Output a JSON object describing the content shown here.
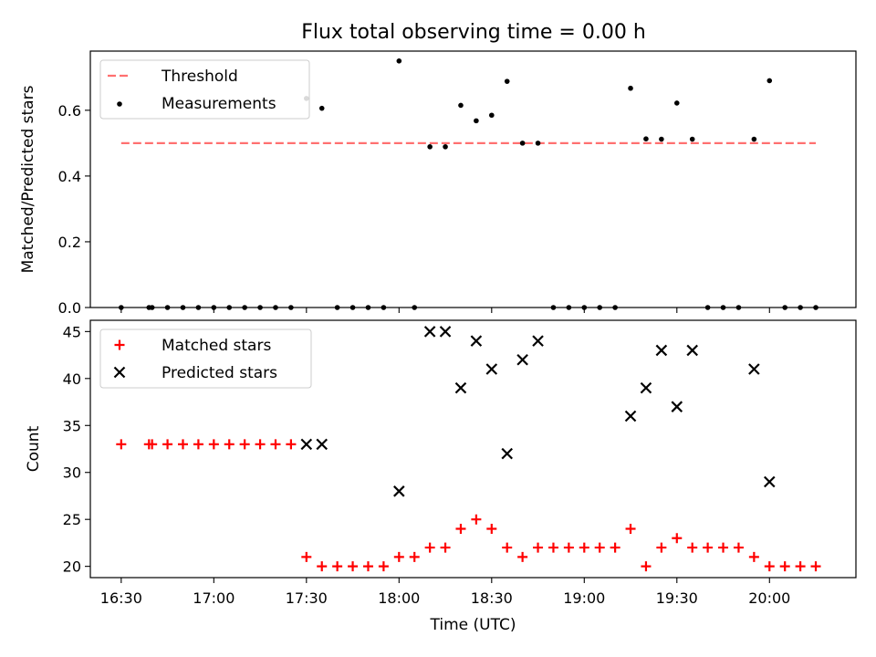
{
  "figure": {
    "title": "Flux total observing time = 0.00 h"
  },
  "chart_data": [
    {
      "type": "scatter",
      "title": "Flux total observing time = 0.00 h",
      "ylabel": "Matched/Predicted stars",
      "xlabel": "",
      "xlim": [
        "16:20",
        "20:28"
      ],
      "ylim": [
        0,
        0.78
      ],
      "y_ticks": [
        0.0,
        0.2,
        0.4,
        0.6
      ],
      "y_tick_labels": [
        "0.0",
        "0.2",
        "0.4",
        "0.6"
      ],
      "x_ticks": [
        "16:30",
        "17:00",
        "17:30",
        "18:00",
        "18:30",
        "19:00",
        "19:30",
        "20:00"
      ],
      "grid": false,
      "legend": "upper-left",
      "series": [
        {
          "name": "Threshold",
          "kind": "dashed-line",
          "color": "#ff7070",
          "x": [
            "16:30",
            "20:15"
          ],
          "y": [
            0.5,
            0.5
          ]
        },
        {
          "name": "Measurements",
          "kind": "points",
          "color": "#000000",
          "x": [
            "16:30",
            "16:39",
            "16:40",
            "16:45",
            "16:50",
            "16:55",
            "17:00",
            "17:05",
            "17:10",
            "17:15",
            "17:20",
            "17:25",
            "17:30",
            "17:35",
            "17:40",
            "17:45",
            "17:50",
            "17:55",
            "18:00",
            "18:05",
            "18:10",
            "18:15",
            "18:20",
            "18:25",
            "18:30",
            "18:35",
            "18:40",
            "18:45",
            "18:50",
            "18:55",
            "19:00",
            "19:05",
            "19:10",
            "19:15",
            "19:20",
            "19:25",
            "19:30",
            "19:35",
            "19:40",
            "19:45",
            "19:50",
            "19:55",
            "20:00",
            "20:05",
            "20:10",
            "20:15"
          ],
          "y": [
            0,
            0,
            0,
            0,
            0,
            0,
            0,
            0,
            0,
            0,
            0,
            0,
            0.636,
            0.606,
            0,
            0,
            0,
            0,
            0.75,
            0,
            0.489,
            0.489,
            0.615,
            0.568,
            0.585,
            0.688,
            0.5,
            0.5,
            0,
            0,
            0,
            0,
            0,
            0.667,
            0.513,
            0.512,
            0.622,
            0.512,
            0,
            0,
            0,
            0.512,
            0.69,
            0,
            0,
            0
          ]
        }
      ]
    },
    {
      "type": "scatter",
      "title": "",
      "ylabel": "Count",
      "xlabel": "Time (UTC)",
      "xlim": [
        "16:20",
        "20:28"
      ],
      "ylim": [
        18.8,
        46.2
      ],
      "y_ticks": [
        20,
        25,
        30,
        35,
        40,
        45
      ],
      "y_tick_labels": [
        "20",
        "25",
        "30",
        "35",
        "40",
        "45"
      ],
      "x_ticks": [
        "16:30",
        "17:00",
        "17:30",
        "18:00",
        "18:30",
        "19:00",
        "19:30",
        "20:00"
      ],
      "x_tick_labels": [
        "16:30",
        "17:00",
        "17:30",
        "18:00",
        "18:30",
        "19:00",
        "19:30",
        "20:00"
      ],
      "grid": false,
      "legend": "upper-left",
      "series": [
        {
          "name": "Matched stars",
          "marker": "plus",
          "color": "#ff0000",
          "x": [
            "16:30",
            "16:39",
            "16:40",
            "16:45",
            "16:50",
            "16:55",
            "17:00",
            "17:05",
            "17:10",
            "17:15",
            "17:20",
            "17:25",
            "17:30",
            "17:35",
            "17:40",
            "17:45",
            "17:50",
            "17:55",
            "18:00",
            "18:05",
            "18:10",
            "18:15",
            "18:20",
            "18:25",
            "18:30",
            "18:35",
            "18:40",
            "18:45",
            "18:50",
            "18:55",
            "19:00",
            "19:05",
            "19:10",
            "19:15",
            "19:20",
            "19:25",
            "19:30",
            "19:35",
            "19:40",
            "19:45",
            "19:50",
            "19:55",
            "20:00",
            "20:05",
            "20:10",
            "20:15"
          ],
          "y": [
            33,
            33,
            33,
            33,
            33,
            33,
            33,
            33,
            33,
            33,
            33,
            33,
            21,
            20,
            20,
            20,
            20,
            20,
            21,
            21,
            22,
            22,
            24,
            25,
            24,
            22,
            21,
            22,
            22,
            22,
            22,
            22,
            22,
            24,
            20,
            22,
            23,
            22,
            22,
            22,
            22,
            21,
            20,
            20,
            20,
            20
          ]
        },
        {
          "name": "Predicted stars",
          "marker": "x",
          "color": "#000000",
          "x": [
            "17:30",
            "17:35",
            "18:00",
            "18:10",
            "18:15",
            "18:20",
            "18:25",
            "18:30",
            "18:35",
            "18:40",
            "18:45",
            "19:15",
            "19:20",
            "19:25",
            "19:30",
            "19:35",
            "19:55",
            "20:00"
          ],
          "y": [
            33,
            33,
            28,
            45,
            45,
            39,
            44,
            41,
            32,
            42,
            44,
            36,
            39,
            43,
            37,
            43,
            41,
            29
          ]
        }
      ]
    }
  ]
}
